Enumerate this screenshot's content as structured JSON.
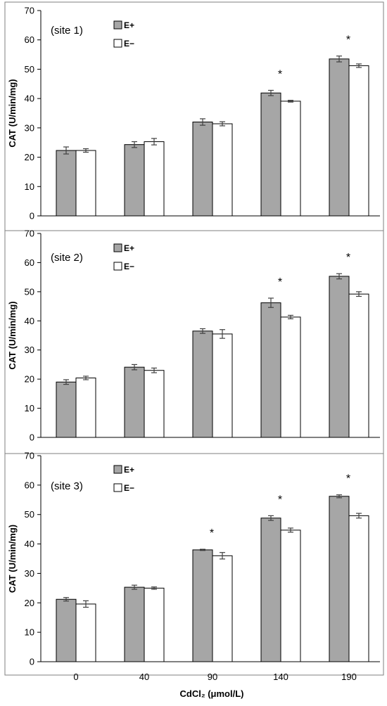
{
  "chart_data": [
    {
      "type": "bar",
      "annotation": "(site 1)",
      "ylabel": "CAT (U/min/mg)",
      "ylim": [
        0,
        70
      ],
      "yticks": [
        0,
        10,
        20,
        30,
        40,
        50,
        60,
        70
      ],
      "categories": [
        "0",
        "40",
        "90",
        "140",
        "190"
      ],
      "series": [
        {
          "name": "E+",
          "color": "#a6a6a6",
          "values": [
            22.3,
            24.3,
            32.0,
            41.9,
            53.5
          ],
          "errors": [
            1.2,
            1.0,
            1.1,
            0.9,
            1.0
          ]
        },
        {
          "name": "E−",
          "color": "#ffffff",
          "values": [
            22.3,
            25.3,
            31.4,
            39.1,
            51.2
          ],
          "errors": [
            0.6,
            1.1,
            0.7,
            0.3,
            0.6
          ]
        }
      ],
      "significance": [
        "",
        "",
        "",
        "*",
        "*"
      ],
      "legend_position": "top-center"
    },
    {
      "type": "bar",
      "annotation": "(site 2)",
      "ylabel": "CAT (U/min/mg)",
      "ylim": [
        0,
        70
      ],
      "yticks": [
        0,
        10,
        20,
        30,
        40,
        50,
        60,
        70
      ],
      "categories": [
        "0",
        "40",
        "90",
        "140",
        "190"
      ],
      "series": [
        {
          "name": "E+",
          "color": "#a6a6a6",
          "values": [
            19.0,
            24.1,
            36.5,
            46.2,
            55.3
          ],
          "errors": [
            0.8,
            0.9,
            0.8,
            1.6,
            0.9
          ]
        },
        {
          "name": "E−",
          "color": "#ffffff",
          "values": [
            20.4,
            23.0,
            35.5,
            41.3,
            49.2
          ],
          "errors": [
            0.6,
            0.8,
            1.5,
            0.6,
            0.8
          ]
        }
      ],
      "significance": [
        "",
        "",
        "",
        "*",
        "*"
      ],
      "legend_position": "top-center"
    },
    {
      "type": "bar",
      "annotation": "(site 3)",
      "ylabel": "CAT (U/min/mg)",
      "xlabel": "CdCl₂ (μmol/L)",
      "ylim": [
        0,
        70
      ],
      "yticks": [
        0,
        10,
        20,
        30,
        40,
        50,
        60,
        70
      ],
      "categories": [
        "0",
        "40",
        "90",
        "140",
        "190"
      ],
      "series": [
        {
          "name": "E+",
          "color": "#a6a6a6",
          "values": [
            21.2,
            25.3,
            38.0,
            48.8,
            56.2
          ],
          "errors": [
            0.6,
            0.7,
            0.2,
            0.8,
            0.5
          ]
        },
        {
          "name": "E−",
          "color": "#ffffff",
          "values": [
            19.6,
            25.0,
            36.0,
            44.7,
            49.6
          ],
          "errors": [
            1.1,
            0.4,
            1.1,
            0.7,
            0.8
          ]
        }
      ],
      "significance": [
        "",
        "",
        "*",
        "*",
        "*"
      ],
      "legend_position": "top-center"
    }
  ]
}
